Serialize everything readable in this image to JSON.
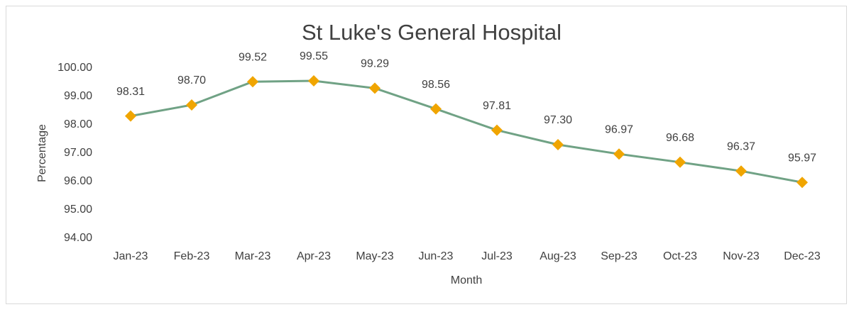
{
  "chart_data": {
    "type": "line",
    "title": "St Luke's General Hospital",
    "x_label": "Month",
    "y_label": "Percentage",
    "categories": [
      "Jan-23",
      "Feb-23",
      "Mar-23",
      "Apr-23",
      "May-23",
      "Jun-23",
      "Jul-23",
      "Aug-23",
      "Sep-23",
      "Oct-23",
      "Nov-23",
      "Dec-23"
    ],
    "series": [
      {
        "name": "Percentage",
        "line_color": "#70a285",
        "color": "#f0a500",
        "values": [
          98.31,
          98.7,
          99.52,
          99.55,
          99.29,
          98.56,
          97.81,
          97.3,
          96.97,
          96.68,
          96.37,
          95.97
        ],
        "value_labels": [
          "98.31",
          "98.70",
          "99.52",
          "99.55",
          "99.29",
          "98.56",
          "97.81",
          "97.30",
          "96.97",
          "96.68",
          "96.37",
          "95.97"
        ]
      }
    ],
    "ylim": [
      94,
      100
    ],
    "yticks": [
      {
        "value": 94,
        "label": "94.00"
      },
      {
        "value": 95,
        "label": "95.00"
      },
      {
        "value": 96,
        "label": "96.00"
      },
      {
        "value": 97,
        "label": "97.00"
      },
      {
        "value": 98,
        "label": "98.00"
      },
      {
        "value": 99,
        "label": "99.00"
      },
      {
        "value": 100,
        "label": "100.00"
      }
    ],
    "grid": false
  }
}
